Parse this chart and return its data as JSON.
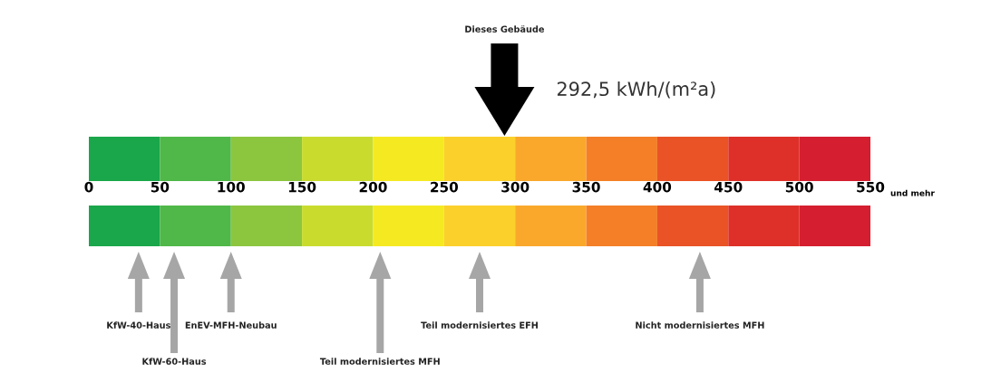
{
  "chart_data": {
    "type": "bar",
    "orientation": "horizontal",
    "stacked": true,
    "categories": [
      null
    ],
    "xlim": [
      0,
      550
    ],
    "xticks": [
      0,
      50,
      100,
      150,
      200,
      250,
      300,
      350,
      400,
      450,
      500,
      550
    ],
    "series": [
      {
        "color": "#1aa64a",
        "values": [
          50
        ]
      },
      {
        "color": "#4fb848",
        "values": [
          50
        ]
      },
      {
        "color": "#8cc63f",
        "values": [
          50
        ]
      },
      {
        "color": "#c9dc2e",
        "values": [
          50
        ]
      },
      {
        "color": "#f5ea22",
        "values": [
          50
        ]
      },
      {
        "color": "#fcd02a",
        "values": [
          50
        ]
      },
      {
        "color": "#f9a82c",
        "values": [
          50
        ]
      },
      {
        "color": "#f47f26",
        "values": [
          50
        ]
      },
      {
        "color": "#e95325",
        "values": [
          50
        ]
      },
      {
        "color": "#de3028",
        "values": [
          50
        ]
      },
      {
        "color": "#d51e30",
        "values": [
          50
        ]
      }
    ],
    "ref_lines": [
      {
        "axis": "x",
        "value": 292.5,
        "label": "Dieses Gebäude",
        "color": "#000000"
      },
      {
        "axis": "x",
        "value": 35,
        "label": "KfW-40-Haus",
        "color": "#a6a6a6"
      },
      {
        "axis": "x",
        "value": 60,
        "label": "KfW-60-Haus",
        "color": "#a6a6a6"
      },
      {
        "axis": "x",
        "value": 100,
        "label": "EnEV-MFH-Neubau",
        "color": "#a6a6a6"
      },
      {
        "axis": "x",
        "value": 205,
        "label": "Teil modernisiertes MFH",
        "color": "#a6a6a6"
      },
      {
        "axis": "x",
        "value": 275,
        "label": "Teil modernisiertes EFH",
        "color": "#a6a6a6"
      },
      {
        "axis": "x",
        "value": 430,
        "label": "Nicht modernisiertes MFH",
        "color": "#a6a6a6"
      }
    ],
    "annotations": [
      "292,5 kWh/(m²a)",
      "und mehr"
    ]
  }
}
